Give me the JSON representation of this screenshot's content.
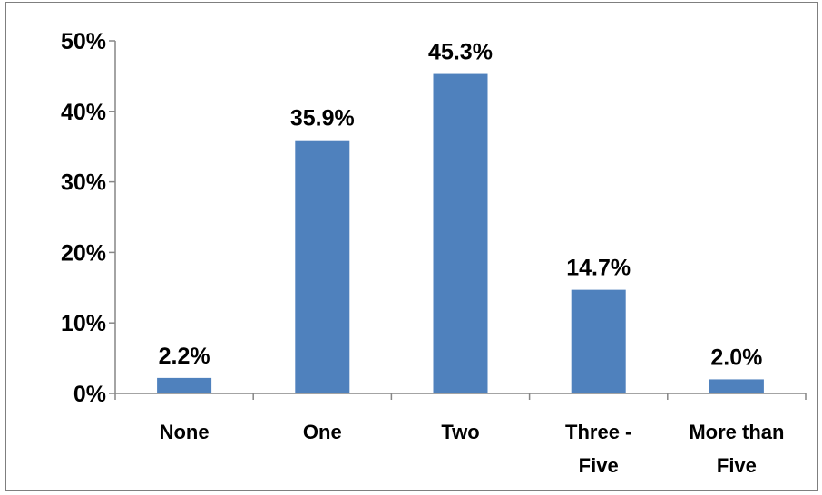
{
  "chart_data": {
    "type": "bar",
    "title": "",
    "xlabel": "",
    "ylabel": "",
    "categories": [
      [
        "None"
      ],
      [
        "One"
      ],
      [
        "Two"
      ],
      [
        "Three -",
        "Five"
      ],
      [
        "More than",
        "Five"
      ]
    ],
    "values": [
      2.2,
      35.9,
      45.3,
      14.7,
      2.0
    ],
    "data_labels": [
      "2.2%",
      "35.9%",
      "45.3%",
      "14.7%",
      "2.0%"
    ],
    "ylim": [
      0,
      50
    ],
    "yticks": [
      0,
      10,
      20,
      30,
      40,
      50
    ],
    "ytick_labels": [
      "0%",
      "10%",
      "20%",
      "30%",
      "40%",
      "50%"
    ],
    "grid": false,
    "legend": "none",
    "bar_color": "#4f81bd",
    "axis_color": "#868686"
  }
}
